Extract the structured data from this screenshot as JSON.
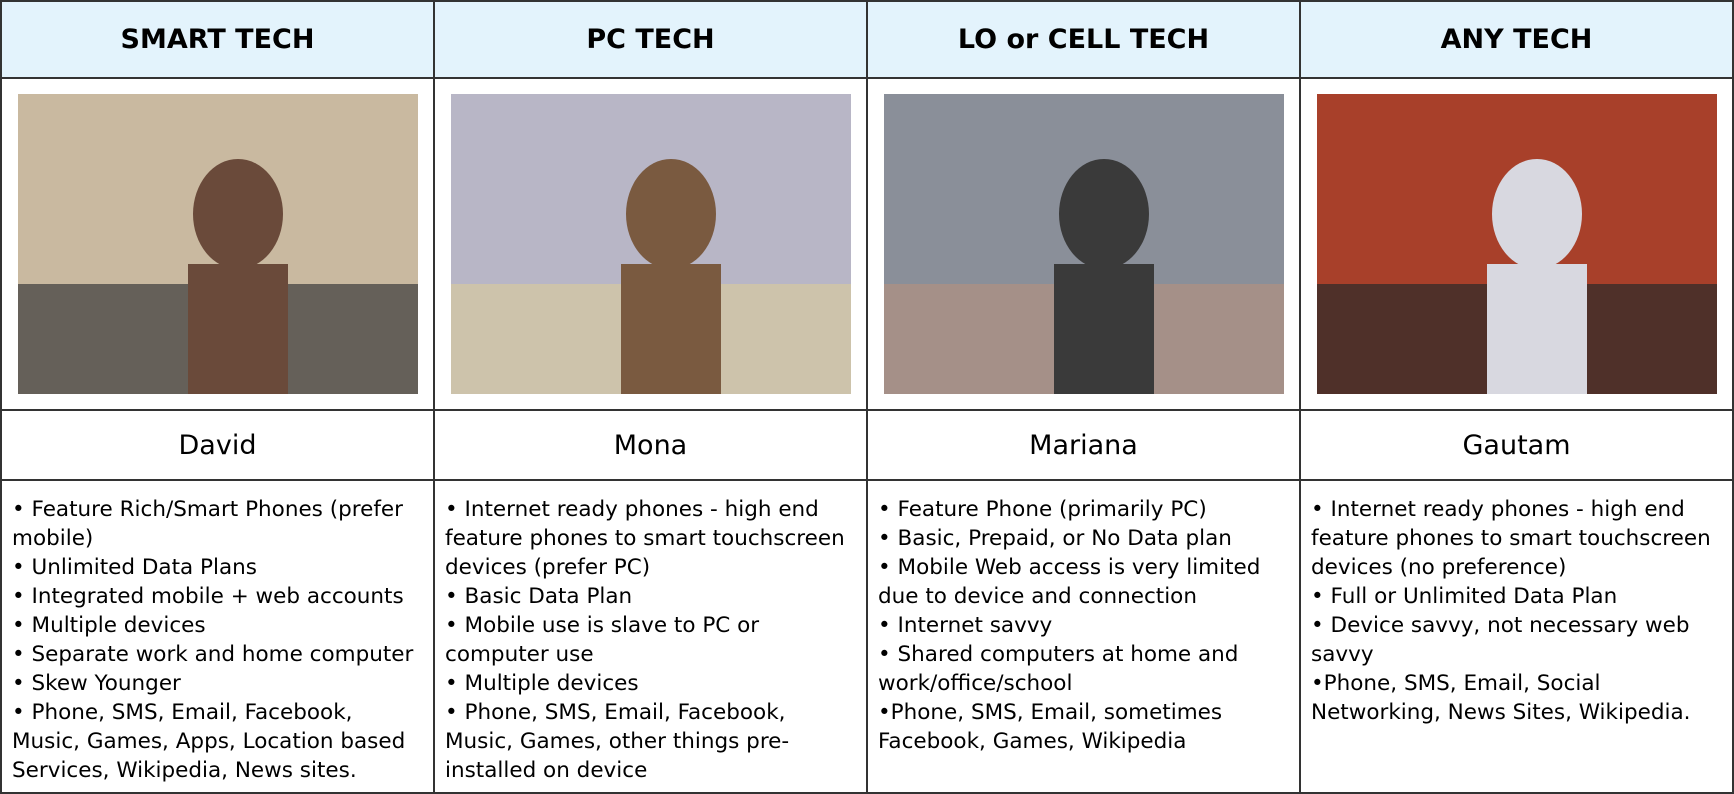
{
  "columns": [
    {
      "header": "SMART TECH",
      "name": "David",
      "items": [
        "• Feature Rich/Smart Phones (prefer mobile)",
        "• Unlimited Data Plans",
        "• Integrated mobile + web accounts",
        "• Multiple devices",
        "• Separate work and home computer",
        "• Skew Younger",
        "• Phone, SMS, Email, Facebook, Music, Games, Apps, Location based Services, Wikipedia, News sites."
      ]
    },
    {
      "header": "PC TECH",
      "name": "Mona",
      "items": [
        "• Internet ready phones - high end feature phones to smart touchscreen devices (prefer PC)",
        "• Basic Data Plan",
        "• Mobile use is slave to PC or computer use",
        "• Multiple devices",
        "• Phone, SMS, Email, Facebook, Music, Games, other things pre-installed on device"
      ]
    },
    {
      "header": "LO or CELL TECH",
      "name": "Mariana",
      "items": [
        "• Feature Phone (primarily PC)",
        "• Basic, Prepaid, or No Data plan",
        "• Mobile Web access is very limited due to device and connection",
        "• Internet savvy",
        "• Shared computers at home and work/office/school",
        "•Phone, SMS, Email, sometimes Facebook, Games, Wikipedia"
      ]
    },
    {
      "header": "ANY TECH",
      "name": "Gautam",
      "items": [
        "• Internet ready phones - high end feature phones to smart touchscreen devices (no preference)",
        "• Full or Unlimited Data Plan",
        "• Device savvy, not necessary web savvy",
        "•Phone, SMS, Email, Social Networking, News Sites, Wikipedia."
      ]
    }
  ]
}
